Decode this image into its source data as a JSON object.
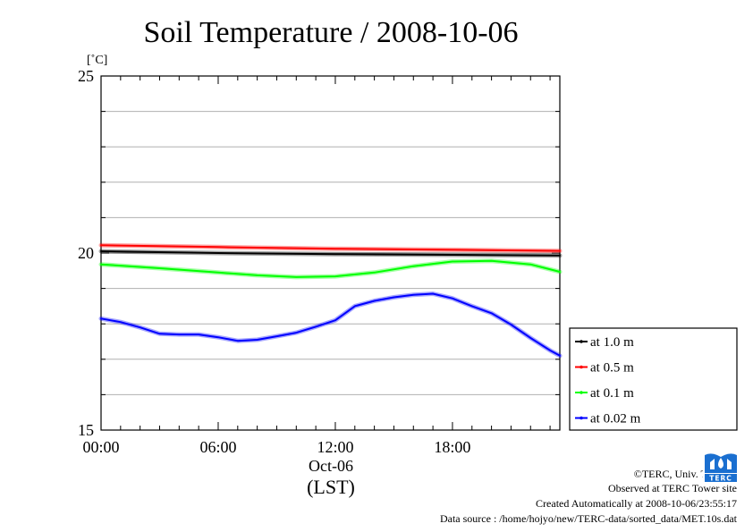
{
  "chart_data": {
    "type": "line",
    "title": "Soil Temperature / 2008-10-06",
    "ylabel": "[˚C]",
    "ylim": [
      15,
      25
    ],
    "y_ticks": [
      15,
      20,
      25
    ],
    "y_minor_step": 1,
    "xlim": [
      0,
      23.5
    ],
    "x_ticks": [
      {
        "x": 0,
        "label": "00:00"
      },
      {
        "x": 6,
        "label": "06:00"
      },
      {
        "x": 12,
        "label": "12:00"
      },
      {
        "x": 18,
        "label": "18:00"
      }
    ],
    "x_date_label": "Oct-06",
    "x_unit_label": "(LST)",
    "grid": "horizontal",
    "legend_position": "bottom-right outside",
    "series": [
      {
        "name": "at 1.0 m",
        "color": "#000000",
        "points": [
          [
            0,
            20.05
          ],
          [
            6,
            20.0
          ],
          [
            12,
            19.97
          ],
          [
            18,
            19.95
          ],
          [
            23.5,
            19.93
          ]
        ]
      },
      {
        "name": "at 0.5 m",
        "color": "#ff0000",
        "points": [
          [
            0,
            20.22
          ],
          [
            6,
            20.17
          ],
          [
            12,
            20.12
          ],
          [
            18,
            20.09
          ],
          [
            23.5,
            20.06
          ]
        ]
      },
      {
        "name": "at 0.1 m",
        "color": "#00ff00",
        "points": [
          [
            0,
            19.68
          ],
          [
            3,
            19.57
          ],
          [
            6,
            19.45
          ],
          [
            8,
            19.37
          ],
          [
            10,
            19.32
          ],
          [
            12,
            19.34
          ],
          [
            14,
            19.45
          ],
          [
            16,
            19.63
          ],
          [
            18,
            19.76
          ],
          [
            20,
            19.78
          ],
          [
            22,
            19.68
          ],
          [
            23.5,
            19.47
          ]
        ]
      },
      {
        "name": "at 0.02 m",
        "color": "#0000ff",
        "points": [
          [
            0,
            18.15
          ],
          [
            1,
            18.05
          ],
          [
            2,
            17.9
          ],
          [
            3,
            17.72
          ],
          [
            4,
            17.7
          ],
          [
            5,
            17.7
          ],
          [
            6,
            17.62
          ],
          [
            7,
            17.52
          ],
          [
            8,
            17.55
          ],
          [
            9,
            17.65
          ],
          [
            10,
            17.75
          ],
          [
            11,
            17.92
          ],
          [
            12,
            18.1
          ],
          [
            13,
            18.5
          ],
          [
            14,
            18.65
          ],
          [
            15,
            18.75
          ],
          [
            16,
            18.82
          ],
          [
            17,
            18.85
          ],
          [
            18,
            18.72
          ],
          [
            19,
            18.5
          ],
          [
            20,
            18.3
          ],
          [
            21,
            17.98
          ],
          [
            22,
            17.6
          ],
          [
            23,
            17.25
          ],
          [
            23.5,
            17.1
          ]
        ]
      }
    ]
  },
  "credits": {
    "copyright": "©TERC, Univ. Tsukuba",
    "observed": "Observed at TERC Tower site",
    "created": "Created Automatically at 2008-10-06/23:55:17",
    "source": "Data source : /home/hojyo/new/TERC-data/sorted_data/MET.10s.dat"
  },
  "logo": {
    "name": "terc-logo",
    "text": "TERC",
    "color": "#1a6fd0"
  }
}
